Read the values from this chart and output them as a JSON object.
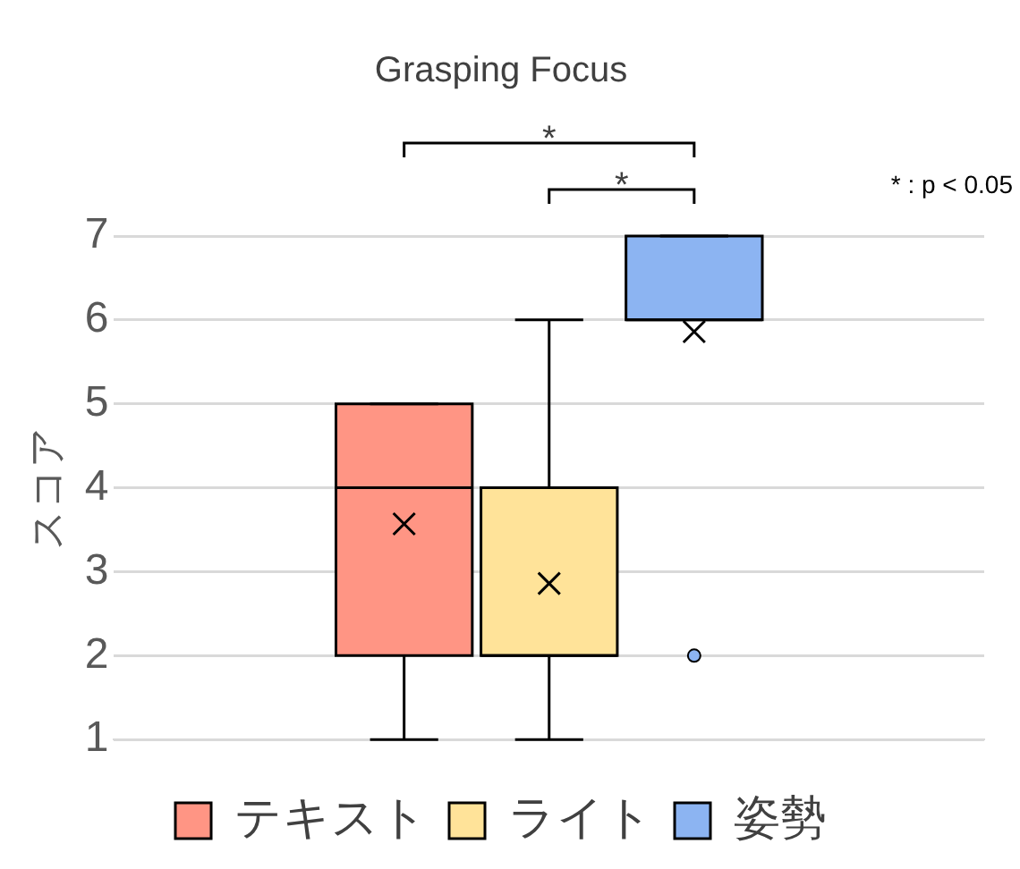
{
  "chart_data": {
    "type": "box",
    "title": "Grasping Focus",
    "ylabel": "スコア",
    "categories": [
      null
    ],
    "series": [
      {
        "name": "テキスト",
        "color": "#ff9584",
        "boxes": [
          {
            "low": 1,
            "q1": 2,
            "median": 4,
            "q3": 5,
            "high": 5,
            "mean": 3.57
          }
        ]
      },
      {
        "name": "ライト",
        "color": "#ffe399",
        "boxes": [
          {
            "low": 1,
            "q1": 2,
            "median": 2,
            "q3": 4,
            "high": 6,
            "mean": 2.86
          }
        ]
      },
      {
        "name": "姿勢",
        "color": "#8cb4f2",
        "boxes": [
          {
            "low": 6,
            "q1": 6,
            "median": 6,
            "q3": 7,
            "high": 7,
            "mean": 5.86,
            "outliers": [
              2
            ]
          }
        ]
      }
    ],
    "ylim": [
      1,
      7
    ],
    "yticks": [
      1,
      2,
      3,
      4,
      5,
      6,
      7
    ],
    "grid": "y",
    "legend": "bottom",
    "marker": "cross",
    "annotations": [
      "*",
      "*",
      "* : p < 0.05"
    ]
  }
}
